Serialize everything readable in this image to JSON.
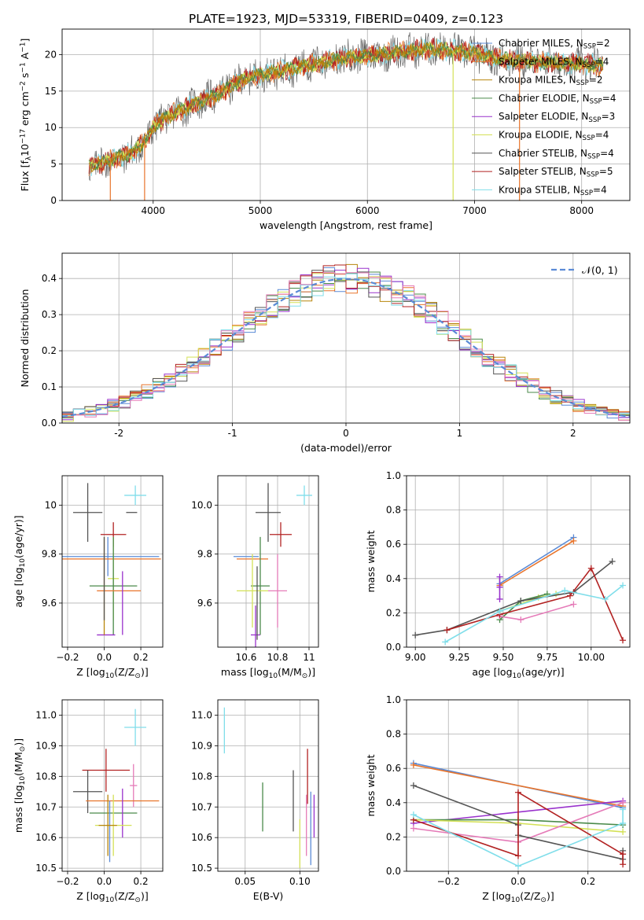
{
  "title": "PLATE=1923, MJD=53319, FIBERID=0409, z=0.123",
  "colors": {
    "Chabrier MILES": "#5b8bd6",
    "Salpeter MILES": "#e8742b",
    "Kroupa MILES": "#b8860b",
    "Chabrier ELODIE": "#4a8a4a",
    "Salpeter ELODIE": "#9932cc",
    "Kroupa ELODIE": "#d4e157",
    "Chabrier STELIB": "#555555",
    "Salpeter STELIB": "#b22222",
    "Kroupa STELIB": "#80deea",
    "Kroupa pink": "#e57bb8"
  },
  "chart_data": [
    {
      "id": "spectrum",
      "type": "line",
      "title": "PLATE=1923, MJD=53319, FIBERID=0409, z=0.123",
      "xlabel": "wavelength [Angstrom, rest frame]",
      "ylabel": "Flux [f_λ 10^-17 erg cm^-2 s^-1 A^-1]",
      "xlim": [
        3150,
        8450
      ],
      "ylim": [
        0,
        23.5
      ],
      "xticks": [
        4000,
        5000,
        6000,
        7000,
        8000
      ],
      "yticks": [
        0,
        5,
        10,
        15,
        20
      ],
      "legend_position": "top-right",
      "legend": [
        {
          "label": "Chabrier MILES, N_SSP=2",
          "color": "#5b8bd6"
        },
        {
          "label": "Salpeter MILES, N_SSP=4",
          "color": "#e8742b"
        },
        {
          "label": "Kroupa MILES, N_SSP=2",
          "color": "#b8860b"
        },
        {
          "label": "Chabrier ELODIE, N_SSP=4",
          "color": "#4a8a4a"
        },
        {
          "label": "Salpeter ELODIE, N_SSP=3",
          "color": "#9932cc"
        },
        {
          "label": "Kroupa ELODIE, N_SSP=4",
          "color": "#d4e157"
        },
        {
          "label": "Chabrier STELIB, N_SSP=4",
          "color": "#555555"
        },
        {
          "label": "Salpeter STELIB, N_SSP=5",
          "color": "#b22222"
        },
        {
          "label": "Kroupa STELIB, N_SSP=4",
          "color": "#80deea"
        }
      ],
      "continuum": [
        [
          3400,
          4.6
        ],
        [
          3600,
          5.6
        ],
        [
          3800,
          6.5
        ],
        [
          3950,
          8.5
        ],
        [
          4000,
          10.2
        ],
        [
          4200,
          12
        ],
        [
          4400,
          13.3
        ],
        [
          4600,
          14.5
        ],
        [
          4800,
          16.3
        ],
        [
          5000,
          17.3
        ],
        [
          5200,
          17.8
        ],
        [
          5400,
          18.4
        ],
        [
          5600,
          19
        ],
        [
          5800,
          19.6
        ],
        [
          6000,
          19.8
        ],
        [
          6200,
          20.2
        ],
        [
          6400,
          20.5
        ],
        [
          6600,
          20.8
        ],
        [
          6800,
          20.6
        ],
        [
          7000,
          20.2
        ],
        [
          7200,
          19.5
        ],
        [
          7400,
          19.2
        ],
        [
          7600,
          19
        ],
        [
          7800,
          18.8
        ],
        [
          8000,
          18.7
        ],
        [
          8200,
          18.5
        ]
      ],
      "dips": [
        [
          3600,
          0
        ],
        [
          3920,
          0
        ],
        [
          6800,
          0
        ],
        [
          7420,
          0
        ]
      ]
    },
    {
      "id": "residuals",
      "type": "bar",
      "xlabel": "(data-model)/error",
      "ylabel": "Normed distribution",
      "xlim": [
        -2.5,
        2.5
      ],
      "ylim": [
        0,
        0.47
      ],
      "xticks": [
        -2,
        -1,
        0,
        1,
        2
      ],
      "yticks": [
        0.0,
        0.1,
        0.2,
        0.3,
        0.4
      ],
      "legend_position": "top-right",
      "gaussian_label": "𝒩(0, 1)",
      "bin_width": 0.1
    },
    {
      "id": "age_vs_Z",
      "type": "scatter",
      "xlabel": "Z [log10(Z/Z_sun)]",
      "ylabel": "age [log10(age/yr)]",
      "xlim": [
        -0.23,
        0.32
      ],
      "ylim": [
        9.42,
        10.12
      ],
      "xticks": [
        -0.2,
        0.0,
        0.2
      ],
      "xticklabels": [
        "−0.2",
        "0.0",
        "0.2"
      ],
      "yticks": [
        9.6,
        9.8,
        10.0
      ],
      "xerr_points": [
        {
          "series": "Kroupa STELIB",
          "x": 0.17,
          "y": 10.04,
          "xerr": 0.06,
          "yerr": 0.04
        },
        {
          "series": "Chabrier STELIB",
          "x": -0.09,
          "y": 9.97,
          "xerr": 0.08,
          "yerr": 0.12
        },
        {
          "series": "Chabrier STELIB 2",
          "x": 0.15,
          "y": 9.97,
          "xerr": 0.03,
          "yerr": 0.0
        },
        {
          "series": "Salpeter STELIB",
          "x": 0.05,
          "y": 9.88,
          "xerr": 0.07,
          "yerr": 0.05
        },
        {
          "series": "Chabrier MILES",
          "x": 0.02,
          "y": 9.79,
          "xerr": 0.28,
          "yerr": 0.08
        },
        {
          "series": "Salpeter MILES",
          "x": 0.03,
          "y": 9.78,
          "xerr": 0.28,
          "yerr": 0.0
        },
        {
          "series": "Kroupa ELODIE",
          "x": 0.05,
          "y": 9.7,
          "xerr": 0.03,
          "yerr": 0.17
        },
        {
          "series": "Chabrier ELODIE",
          "x": 0.05,
          "y": 9.67,
          "xerr": 0.13,
          "yerr": 0.2
        },
        {
          "series": "Salpeter MILES 2",
          "x": 0.08,
          "y": 9.65,
          "xerr": 0.12,
          "yerr": 0.0
        },
        {
          "series": "Salpeter ELODIE",
          "x": 0.01,
          "y": 9.47,
          "xerr": 0.05,
          "yerr": 0.0
        },
        {
          "series": "Salpeter ELODIE 2",
          "x": 0.1,
          "y": 9.6,
          "xerr": 0.0,
          "yerr": 0.13
        },
        {
          "series": "Kroupa MILES",
          "x": 0.0,
          "y": 9.67,
          "xerr": 0.0,
          "yerr": 0.2
        },
        {
          "series": "Chabrier STELIB 3",
          "x": 0.0,
          "y": 9.7,
          "xerr": 0.0,
          "yerr": 0.17
        }
      ]
    },
    {
      "id": "age_vs_mass",
      "type": "scatter",
      "xlabel": "mass [log10(M/M_sun)]",
      "xlim": [
        10.42,
        11.06
      ],
      "ylim": [
        9.42,
        10.12
      ],
      "xticks": [
        10.6,
        10.8,
        11.0
      ],
      "yticks": [
        9.6,
        9.8,
        10.0
      ],
      "xerr_points": [
        {
          "series": "Kroupa STELIB",
          "x": 10.97,
          "y": 10.04,
          "xerr": 0.05,
          "yerr": 0.04
        },
        {
          "series": "Chabrier STELIB",
          "x": 10.74,
          "y": 9.97,
          "xerr": 0.08,
          "yerr": 0.12
        },
        {
          "series": "Salpeter STELIB",
          "x": 10.82,
          "y": 9.88,
          "xerr": 0.07,
          "yerr": 0.05
        },
        {
          "series": "Chabrier MILES",
          "x": 10.6,
          "y": 9.79,
          "xerr": 0.08,
          "yerr": 0.0
        },
        {
          "series": "Salpeter MILES",
          "x": 10.64,
          "y": 9.78,
          "xerr": 0.1,
          "yerr": 0.0
        },
        {
          "series": "Chabrier ELODIE",
          "x": 10.69,
          "y": 9.67,
          "xerr": 0.06,
          "yerr": 0.2
        },
        {
          "series": "Kroupa ELODIE",
          "x": 10.64,
          "y": 9.65,
          "xerr": 0.1,
          "yerr": 0.15
        },
        {
          "series": "Kroupa pink",
          "x": 10.8,
          "y": 9.65,
          "xerr": 0.06,
          "yerr": 0.15
        },
        {
          "series": "Salpeter ELODIE",
          "x": 10.66,
          "y": 9.47,
          "xerr": 0.03,
          "yerr": 0.12
        },
        {
          "series": "Chabrier STELIB 2",
          "x": 10.67,
          "y": 9.6,
          "xerr": 0.0,
          "yerr": 0.15
        }
      ]
    },
    {
      "id": "weight_vs_age",
      "type": "line",
      "xlabel": "age [log10(age/yr)]",
      "ylabel": "mass weight",
      "xlim": [
        8.95,
        10.22
      ],
      "ylim": [
        0,
        1
      ],
      "xticks": [
        9.0,
        9.25,
        9.5,
        9.75,
        10.0
      ],
      "xticklabels": [
        "9.00",
        "9.25",
        "9.50",
        "9.75",
        "10.00"
      ],
      "yticks": [
        0.0,
        0.2,
        0.4,
        0.6,
        0.8,
        1.0
      ],
      "series": [
        {
          "name": "Chabrier MILES",
          "x": [
            9.48,
            9.9
          ],
          "y": [
            0.37,
            0.64
          ]
        },
        {
          "name": "Salpeter MILES",
          "x": [
            9.48,
            9.9
          ],
          "y": [
            0.36,
            0.62
          ]
        },
        {
          "name": "Kroupa ELODIE",
          "x": [
            9.48,
            9.7,
            9.8
          ],
          "y": [
            0.21,
            0.29,
            0.31
          ]
        },
        {
          "name": "Chabrier ELODIE",
          "x": [
            9.48,
            9.6,
            9.75
          ],
          "y": [
            0.16,
            0.27,
            0.31
          ]
        },
        {
          "name": "Salpeter ELODIE",
          "x": [
            9.48,
            9.48,
            9.48
          ],
          "y": [
            0.28,
            0.35,
            0.41
          ]
        },
        {
          "name": "Kroupa pink",
          "x": [
            9.48,
            9.6,
            9.9
          ],
          "y": [
            0.18,
            0.16,
            0.25
          ]
        },
        {
          "name": "Chabrier STELIB",
          "x": [
            9.0,
            9.18,
            9.6,
            9.9,
            10.12
          ],
          "y": [
            0.07,
            0.1,
            0.27,
            0.32,
            0.5
          ]
        },
        {
          "name": "Salpeter STELIB",
          "x": [
            9.18,
            9.48,
            9.88,
            10.0,
            10.18
          ],
          "y": [
            0.1,
            0.19,
            0.3,
            0.46,
            0.04
          ]
        },
        {
          "name": "Kroupa STELIB",
          "x": [
            9.17,
            9.48,
            9.85,
            10.08,
            10.18
          ],
          "y": [
            0.03,
            0.21,
            0.33,
            0.28,
            0.36
          ]
        }
      ]
    },
    {
      "id": "mass_vs_Z",
      "type": "scatter",
      "xlabel": "Z [log10(Z/Z_sun)]",
      "ylabel": "mass [log10(M/M_sun)]",
      "xlim": [
        -0.23,
        0.32
      ],
      "ylim": [
        10.49,
        11.05
      ],
      "xticks": [
        -0.2,
        0.0,
        0.2
      ],
      "xticklabels": [
        "−0.2",
        "0.0",
        "0.2"
      ],
      "yticks": [
        10.5,
        10.6,
        10.7,
        10.8,
        10.9,
        11.0
      ],
      "xerr_points": [
        {
          "series": "Kroupa STELIB",
          "x": 0.17,
          "y": 10.96,
          "xerr": 0.06,
          "yerr": 0.06
        },
        {
          "series": "Salpeter STELIB",
          "x": 0.01,
          "y": 10.82,
          "xerr": 0.13,
          "yerr": 0.07
        },
        {
          "series": "Kroupa pink",
          "x": 0.16,
          "y": 10.77,
          "xerr": 0.02,
          "yerr": 0.07
        },
        {
          "series": "Chabrier STELIB",
          "x": -0.09,
          "y": 10.75,
          "xerr": 0.08,
          "yerr": 0.07
        },
        {
          "series": "Salpeter MILES",
          "x": 0.1,
          "y": 10.72,
          "xerr": 0.2,
          "yerr": 0.0
        },
        {
          "series": "Chabrier ELODIE",
          "x": 0.05,
          "y": 10.68,
          "xerr": 0.13,
          "yerr": 0.0
        },
        {
          "series": "Salpeter ELODIE",
          "x": 0.1,
          "y": 10.68,
          "xerr": 0.0,
          "yerr": 0.08
        },
        {
          "series": "Kroupa ELODIE",
          "x": 0.05,
          "y": 10.64,
          "xerr": 0.1,
          "yerr": 0.1
        },
        {
          "series": "Chabrier MILES",
          "x": 0.03,
          "y": 10.62,
          "xerr": 0.0,
          "yerr": 0.1
        },
        {
          "series": "Kroupa MILES",
          "x": 0.02,
          "y": 10.64,
          "xerr": 0.05,
          "yerr": 0.1
        }
      ]
    },
    {
      "id": "mass_vs_ebv",
      "type": "scatter",
      "xlabel": "E(B-V)",
      "xlim": [
        0.025,
        0.117
      ],
      "ylim": [
        10.49,
        11.05
      ],
      "xticks": [
        0.05,
        0.1
      ],
      "xticklabels": [
        "0.05",
        "0.10"
      ],
      "yticks": [
        10.5,
        10.6,
        10.7,
        10.8,
        10.9,
        11.0
      ],
      "yerr_points": [
        {
          "series": "Kroupa STELIB",
          "x": 0.031,
          "y": 10.95,
          "yerr": 0.075
        },
        {
          "series": "Chabrier ELODIE",
          "x": 0.066,
          "y": 10.7,
          "yerr": 0.08
        },
        {
          "series": "Chabrier STELIB",
          "x": 0.094,
          "y": 10.72,
          "yerr": 0.1
        },
        {
          "series": "Kroupa ELODIE",
          "x": 0.1,
          "y": 10.58,
          "yerr": 0.08
        },
        {
          "series": "Salpeter STELIB",
          "x": 0.107,
          "y": 10.8,
          "yerr": 0.09
        },
        {
          "series": "Kroupa pink",
          "x": 0.106,
          "y": 10.64,
          "yerr": 0.1
        },
        {
          "series": "Chabrier MILES",
          "x": 0.11,
          "y": 10.63,
          "yerr": 0.12
        },
        {
          "series": "Salpeter ELODIE",
          "x": 0.113,
          "y": 10.67,
          "yerr": 0.07
        }
      ]
    },
    {
      "id": "weight_vs_Z",
      "type": "line",
      "xlabel": "Z [log10(Z/Z_sun)]",
      "ylabel": "mass weight",
      "xlim": [
        -0.32,
        0.32
      ],
      "ylim": [
        0,
        1
      ],
      "xticks": [
        -0.2,
        0.0,
        0.2
      ],
      "xticklabels": [
        "−0.2",
        "0.0",
        "0.2"
      ],
      "yticks": [
        0.0,
        0.2,
        0.4,
        0.6,
        0.8,
        1.0
      ],
      "series": [
        {
          "name": "Chabrier MILES",
          "x": [
            -0.3,
            0.3
          ],
          "y": [
            0.63,
            0.37
          ]
        },
        {
          "name": "Salpeter MILES",
          "x": [
            -0.3,
            0.3
          ],
          "y": [
            0.62,
            0.38
          ]
        },
        {
          "name": "Salpeter ELODIE",
          "x": [
            -0.3,
            0.3
          ],
          "y": [
            0.28,
            0.41
          ]
        },
        {
          "name": "Chabrier ELODIE",
          "x": [
            -0.3,
            0.0,
            0.3
          ],
          "y": [
            0.3,
            0.3,
            0.27
          ]
        },
        {
          "name": "Kroupa ELODIE",
          "x": [
            -0.3,
            0.0,
            0.3
          ],
          "y": [
            0.3,
            0.28,
            0.23
          ]
        },
        {
          "name": "Kroupa pink",
          "x": [
            -0.3,
            0.0,
            0.3
          ],
          "y": [
            0.25,
            0.17,
            0.4
          ]
        },
        {
          "name": "Chabrier STELIB",
          "x": [
            -0.3,
            0.0,
            0.0,
            0.3,
            0.3
          ],
          "y": [
            0.5,
            0.27,
            0.21,
            0.07,
            0.12
          ]
        },
        {
          "name": "Salpeter STELIB",
          "x": [
            -0.3,
            0.0,
            0.0,
            0.3,
            0.3
          ],
          "y": [
            0.3,
            0.09,
            0.46,
            0.1,
            0.04
          ]
        },
        {
          "name": "Kroupa STELIB",
          "x": [
            -0.3,
            0.0,
            0.3,
            0.3
          ],
          "y": [
            0.33,
            0.03,
            0.28,
            0.36
          ]
        }
      ]
    }
  ]
}
